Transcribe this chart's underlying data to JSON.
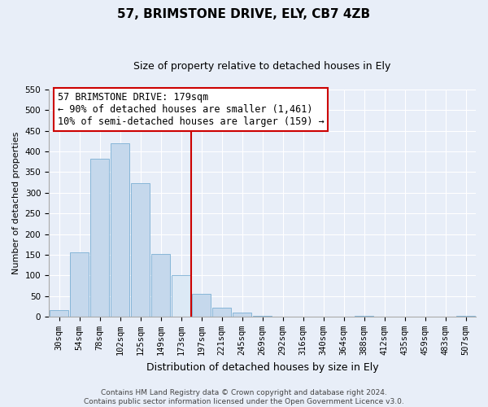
{
  "title": "57, BRIMSTONE DRIVE, ELY, CB7 4ZB",
  "subtitle": "Size of property relative to detached houses in Ely",
  "xlabel": "Distribution of detached houses by size in Ely",
  "ylabel": "Number of detached properties",
  "bar_labels": [
    "30sqm",
    "54sqm",
    "78sqm",
    "102sqm",
    "125sqm",
    "149sqm",
    "173sqm",
    "197sqm",
    "221sqm",
    "245sqm",
    "269sqm",
    "292sqm",
    "316sqm",
    "340sqm",
    "364sqm",
    "388sqm",
    "412sqm",
    "435sqm",
    "459sqm",
    "483sqm",
    "507sqm"
  ],
  "bar_heights": [
    15,
    155,
    382,
    420,
    323,
    152,
    100,
    55,
    22,
    10,
    2,
    0,
    0,
    0,
    0,
    2,
    0,
    0,
    0,
    0,
    2
  ],
  "bar_color": "#c5d8ec",
  "highlight_bar_index": 6,
  "highlight_bar_color": "#dce9f5",
  "vline_x_index": 6,
  "vline_color": "#cc0000",
  "annotation_title": "57 BRIMSTONE DRIVE: 179sqm",
  "annotation_line1": "← 90% of detached houses are smaller (1,461)",
  "annotation_line2": "10% of semi-detached houses are larger (159) →",
  "annotation_box_facecolor": "#ffffff",
  "annotation_box_edgecolor": "#cc0000",
  "ylim": [
    0,
    550
  ],
  "yticks": [
    0,
    50,
    100,
    150,
    200,
    250,
    300,
    350,
    400,
    450,
    500,
    550
  ],
  "footer_line1": "Contains HM Land Registry data © Crown copyright and database right 2024.",
  "footer_line2": "Contains public sector information licensed under the Open Government Licence v3.0.",
  "bg_color": "#e8eef8",
  "grid_color": "#ffffff",
  "spine_color": "#aaaaaa",
  "title_fontsize": 11,
  "subtitle_fontsize": 9,
  "ylabel_fontsize": 8,
  "xlabel_fontsize": 9,
  "tick_fontsize": 7.5,
  "annotation_fontsize": 8.5,
  "footer_fontsize": 6.5
}
